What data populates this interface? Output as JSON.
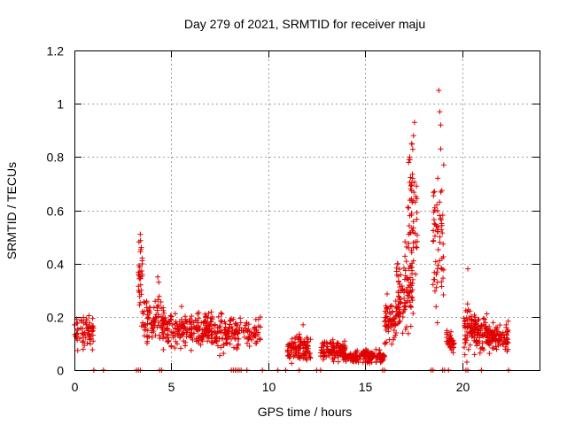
{
  "chart_data": {
    "type": "scatter",
    "title": "Day 279 of 2021, SRMTID for receiver maju",
    "xlabel": "GPS time / hours",
    "ylabel": "SRMTID / TECUs",
    "xlim": [
      0,
      24
    ],
    "ylim": [
      0,
      1.2
    ],
    "x_ticks": [
      0,
      5,
      10,
      15,
      20
    ],
    "x_tick_labels": [
      "0",
      "5",
      "10",
      "15",
      "20"
    ],
    "y_ticks": [
      0,
      0.2,
      0.4,
      0.6,
      0.8,
      1.0,
      1.2
    ],
    "y_tick_labels": [
      "0",
      "0.2",
      "0.4",
      "0.6",
      "0.8",
      "1",
      "1.2"
    ],
    "grid": true,
    "marker": "plus",
    "color": "#e00000",
    "clusters": [
      {
        "x": [
          0.0,
          1.0
        ],
        "mean": 0.15,
        "spread": 0.05,
        "count": 70
      },
      {
        "x": [
          3.3,
          3.5
        ],
        "mean": 0.35,
        "spread": 0.12,
        "count": 30
      },
      {
        "x": [
          3.5,
          4.6
        ],
        "mean": 0.19,
        "spread": 0.07,
        "count": 80
      },
      {
        "x": [
          4.5,
          8.6
        ],
        "mean": 0.15,
        "spread": 0.05,
        "count": 320
      },
      {
        "x": [
          8.6,
          9.6
        ],
        "mean": 0.14,
        "spread": 0.04,
        "count": 50
      },
      {
        "x": [
          11.0,
          12.2
        ],
        "mean": 0.08,
        "spread": 0.04,
        "count": 110
      },
      {
        "x": [
          12.7,
          14.0
        ],
        "mean": 0.07,
        "spread": 0.03,
        "count": 120
      },
      {
        "x": [
          14.0,
          16.0
        ],
        "mean": 0.05,
        "spread": 0.02,
        "count": 160
      },
      {
        "x": [
          16.0,
          16.6
        ],
        "mean": 0.18,
        "spread": 0.08,
        "count": 60
      },
      {
        "x": [
          16.6,
          17.5
        ],
        "mean": 0.3,
        "spread": 0.12,
        "count": 110
      },
      {
        "x": [
          17.2,
          17.7
        ],
        "mean": 0.6,
        "spread": 0.18,
        "count": 50
      },
      {
        "x": [
          18.5,
          19.1
        ],
        "mean": 0.45,
        "spread": 0.22,
        "count": 60
      },
      {
        "x": [
          19.2,
          19.6
        ],
        "mean": 0.11,
        "spread": 0.03,
        "count": 40
      },
      {
        "x": [
          20.1,
          21.3
        ],
        "mean": 0.15,
        "spread": 0.06,
        "count": 130
      },
      {
        "x": [
          21.3,
          22.4
        ],
        "mean": 0.12,
        "spread": 0.04,
        "count": 100
      }
    ],
    "highlights": [
      {
        "x": 3.4,
        "y": 0.51
      },
      {
        "x": 3.45,
        "y": 0.46
      },
      {
        "x": 3.5,
        "y": 0.42
      },
      {
        "x": 17.3,
        "y": 0.8
      },
      {
        "x": 17.4,
        "y": 0.85
      },
      {
        "x": 17.5,
        "y": 0.88
      },
      {
        "x": 17.55,
        "y": 0.93
      },
      {
        "x": 17.45,
        "y": 0.72
      },
      {
        "x": 17.35,
        "y": 0.68
      },
      {
        "x": 18.8,
        "y": 1.05
      },
      {
        "x": 18.85,
        "y": 0.97
      },
      {
        "x": 18.9,
        "y": 0.92
      },
      {
        "x": 18.9,
        "y": 0.83
      },
      {
        "x": 18.75,
        "y": 0.72
      },
      {
        "x": 18.95,
        "y": 0.55
      },
      {
        "x": 18.7,
        "y": 0.62
      },
      {
        "x": 4.3,
        "y": 0.35
      },
      {
        "x": 4.35,
        "y": 0.33
      },
      {
        "x": 20.3,
        "y": 0.38
      },
      {
        "x": 20.25,
        "y": 0.03
      },
      {
        "x": 11.8,
        "y": 0.17
      }
    ],
    "zero_points": [
      1.0,
      1.5,
      3.2,
      3.3,
      3.4,
      4.4,
      4.5,
      8.1,
      8.2,
      8.3,
      8.4,
      8.5,
      8.6,
      8.9,
      9.7,
      10.5,
      10.9,
      11.6,
      12.5,
      12.7,
      15.9,
      16.0,
      18.4,
      18.5,
      19.0,
      19.1,
      19.3,
      20.2,
      20.3,
      21.0,
      22.4
    ]
  }
}
